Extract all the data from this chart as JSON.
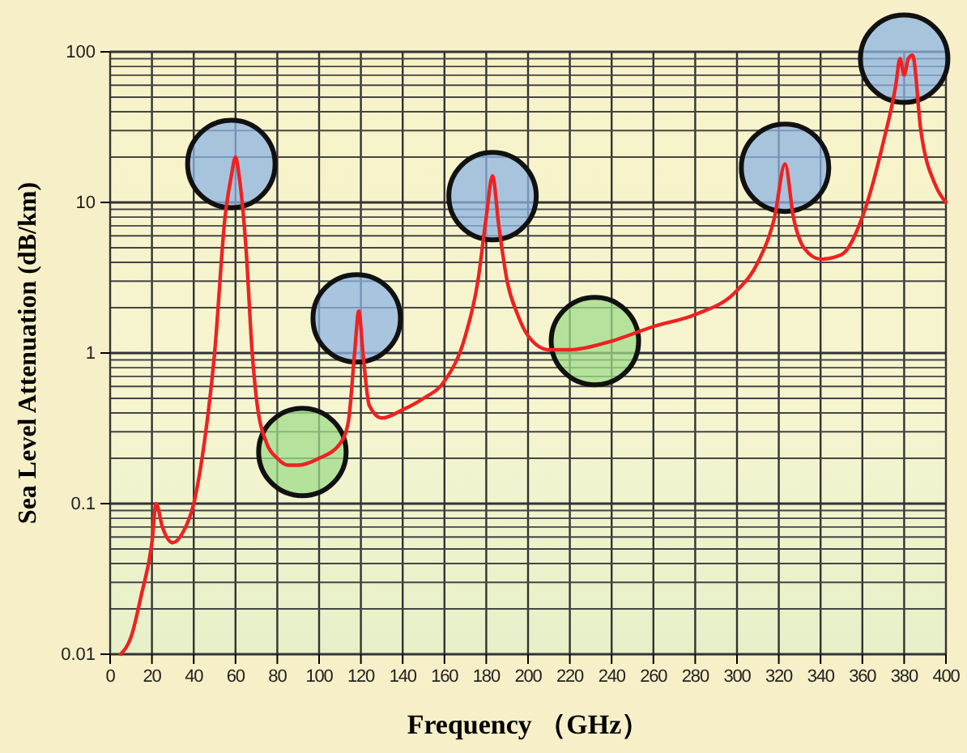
{
  "chart_data": {
    "type": "line",
    "xlabel": "Frequency （GHz）",
    "ylabel": "Sea Level Attenuation (dB/km)",
    "log": "y",
    "grid": true,
    "xlim": [
      0,
      400
    ],
    "ylim": [
      0.01,
      100
    ],
    "xticks": [
      0,
      20,
      40,
      60,
      80,
      100,
      120,
      140,
      160,
      180,
      200,
      220,
      240,
      260,
      280,
      300,
      320,
      340,
      360,
      380,
      400
    ],
    "yticks": [
      0.01,
      0.1,
      1,
      10,
      100
    ],
    "series": [
      {
        "color": "#ee2222",
        "x": [
          5,
          10,
          15,
          20,
          22,
          25,
          30,
          35,
          40,
          45,
          50,
          55,
          58,
          60,
          62,
          65,
          68,
          70,
          75,
          80,
          85,
          90,
          100,
          110,
          114,
          117,
          119,
          121,
          124,
          130,
          140,
          150,
          160,
          170,
          176,
          180,
          183,
          186,
          190,
          195,
          200,
          210,
          220,
          240,
          260,
          280,
          300,
          310,
          318,
          323,
          327,
          332,
          340,
          350,
          360,
          370,
          376,
          378,
          380,
          382,
          384,
          388,
          395,
          400
        ],
        "values": [
          0.01,
          0.013,
          0.025,
          0.055,
          0.1,
          0.07,
          0.055,
          0.065,
          0.1,
          0.25,
          1,
          8,
          15,
          20,
          14,
          5,
          1,
          0.5,
          0.25,
          0.2,
          0.18,
          0.18,
          0.2,
          0.25,
          0.35,
          1,
          1.9,
          1,
          0.45,
          0.37,
          0.42,
          0.5,
          0.65,
          1.3,
          3,
          8,
          15,
          7,
          3,
          1.8,
          1.3,
          1.05,
          1.05,
          1.2,
          1.5,
          1.8,
          2.6,
          4,
          8,
          18,
          8,
          5,
          4.2,
          4.5,
          8,
          25,
          60,
          90,
          70,
          90,
          95,
          30,
          13,
          10
        ]
      }
    ]
  }
}
